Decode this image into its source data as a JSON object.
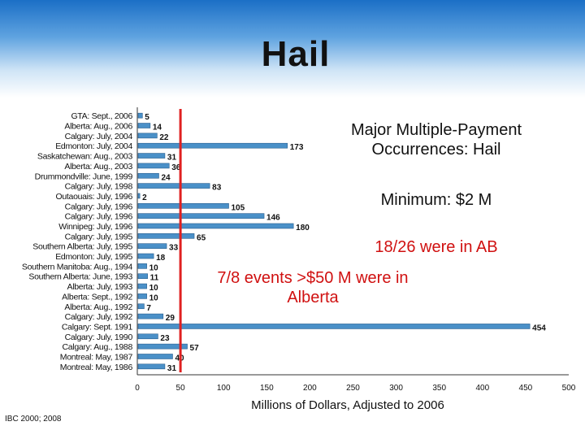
{
  "slide": {
    "title": "Hail",
    "source": "IBC 2000; 2008"
  },
  "notes": [
    {
      "text": "Major Multiple-Payment Occurrences: Hail",
      "color": "#111111"
    },
    {
      "text": "Minimum: $2 M",
      "color": "#111111"
    },
    {
      "text": "18/26 were in AB",
      "color": "#d01010"
    },
    {
      "text": "7/8 events >$50 M were in Alberta",
      "color": "#d01010"
    }
  ],
  "chart_data": {
    "type": "bar",
    "orientation": "horizontal",
    "xlabel": "Millions of Dollars, Adjusted to 2006",
    "xlim": [
      0,
      500
    ],
    "xticks": [
      0,
      50,
      100,
      150,
      200,
      250,
      300,
      350,
      400,
      450,
      500
    ],
    "reference_line": {
      "value": 50,
      "color": "#e02020"
    },
    "bar_color": "#4a90c8",
    "categories": [
      "GTA: Sept., 2006",
      "Alberta: Aug., 2006",
      "Calgary: July, 2004",
      "Edmonton: July, 2004",
      "Saskatchewan: Aug., 2003",
      "Alberta: Aug., 2003",
      "Drummondville: June, 1999",
      "Calgary: July, 1998",
      "Outaouais: July, 1996",
      "Calgary: July, 1996",
      "Calgary: July, 1996",
      "Winnipeg: July, 1996",
      "Calgary: July, 1995",
      "Southern Alberta: July, 1995",
      "Edmonton: July, 1995",
      "Southern Manitoba: Aug., 1994",
      "Southern Alberta: June, 1993",
      "Alberta: July, 1993",
      "Alberta: Sept., 1992",
      "Alberta: Aug., 1992",
      "Calgary: July, 1992",
      "Calgary: Sept. 1991",
      "Calgary: July, 1990",
      "Calgary: Aug., 1988",
      "Montreal: May, 1987",
      "Montreal: May, 1986"
    ],
    "values": [
      5,
      14,
      22,
      173,
      31,
      36,
      24,
      83,
      2,
      105,
      146,
      180,
      65,
      33,
      18,
      10,
      11,
      10,
      10,
      7,
      29,
      454,
      23,
      57,
      40,
      31
    ],
    "value_labels": [
      "5",
      "14",
      "22",
      "173",
      "31",
      "36",
      "24",
      "83",
      "2",
      "105",
      "146",
      "180",
      "65",
      "33",
      "18",
      "10",
      "11",
      "10",
      "10",
      "7",
      "29",
      "454",
      "23",
      "57",
      "40",
      "31"
    ]
  }
}
